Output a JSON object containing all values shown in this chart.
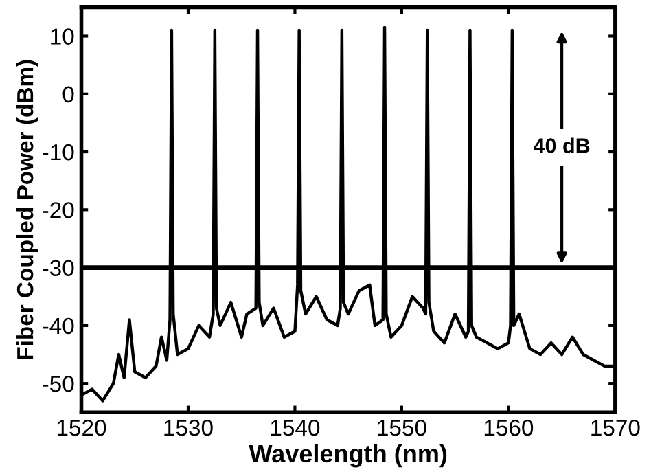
{
  "chart_data": {
    "type": "line",
    "xlabel": "Wavelength (nm)",
    "ylabel": "Fiber Coupled Power (dBm)",
    "xlim": [
      1520,
      1570
    ],
    "xticks": [
      1520,
      1530,
      1540,
      1550,
      1560,
      1570
    ],
    "ylim": [
      -55,
      15
    ],
    "yticks": [
      -50,
      -40,
      -30,
      -20,
      -10,
      0,
      10
    ],
    "series": [
      {
        "color": "#000000",
        "x": [
          1520,
          1521,
          1522,
          1523,
          1523.5,
          1524,
          1524.5,
          1525,
          1526,
          1527,
          1527.5,
          1528,
          1528.3,
          1528.45,
          1528.6,
          1529,
          1530,
          1531,
          1532,
          1532.35,
          1532.5,
          1532.65,
          1533,
          1534,
          1535,
          1535.5,
          1536.35,
          1536.5,
          1536.65,
          1537,
          1538,
          1539,
          1540,
          1540.25,
          1540.4,
          1540.55,
          1541,
          1542,
          1543,
          1544,
          1544.25,
          1544.4,
          1544.55,
          1545,
          1546,
          1547,
          1547.5,
          1548.25,
          1548.4,
          1548.55,
          1549,
          1550,
          1551,
          1552,
          1552.25,
          1552.4,
          1552.55,
          1553,
          1554,
          1555,
          1556,
          1556.25,
          1556.4,
          1556.55,
          1557,
          1558,
          1559,
          1560,
          1560.2,
          1560.35,
          1560.5,
          1561,
          1562,
          1563,
          1564,
          1565,
          1566,
          1567,
          1568,
          1569,
          1570
        ],
        "values": [
          -52,
          -51,
          -53,
          -50,
          -45,
          -49,
          -39,
          -48,
          -49,
          -47,
          -42,
          -46,
          -39,
          11,
          -38,
          -45,
          -44,
          -40,
          -42,
          -38,
          11,
          -37,
          -40,
          -36,
          -42,
          -38,
          -37,
          11,
          -36,
          -40,
          -37,
          -42,
          -41,
          -33,
          11,
          -34,
          -38,
          -35,
          -39,
          -40,
          -37,
          11,
          -36,
          -38,
          -34,
          -33,
          -40,
          -39,
          11.5,
          -38,
          -42,
          -40,
          -35,
          -37,
          -38,
          11,
          -36,
          -41,
          -43,
          -38,
          -42,
          -41,
          11,
          -40,
          -42,
          -43,
          -44,
          -43,
          -40,
          11,
          -40,
          -38,
          -44,
          -45,
          -43,
          -45,
          -42,
          -45,
          -46,
          -47,
          -47
        ]
      }
    ],
    "ref_lines": [
      {
        "axis": "y",
        "value": -30,
        "color": "#000000"
      }
    ],
    "annotations": [
      "40 dB"
    ],
    "grid": false,
    "marker": "none",
    "line_style": "solid"
  }
}
